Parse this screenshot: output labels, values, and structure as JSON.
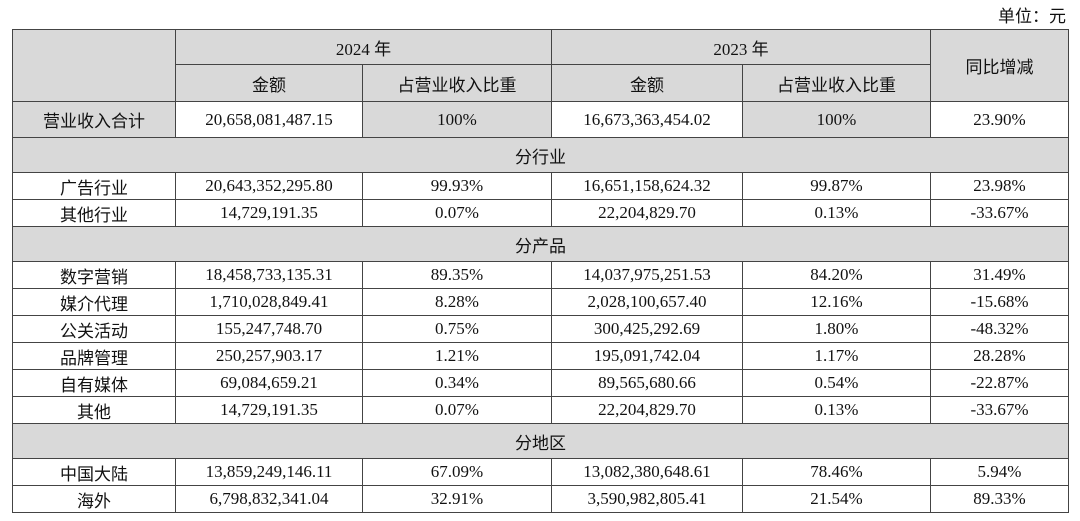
{
  "unit": "单位：元",
  "table": {
    "header_top": [
      "2024 年",
      "2023 年",
      "同比增减"
    ],
    "header_sub": [
      "金额",
      "占营业收入比重",
      "金额",
      "占营业收入比重"
    ],
    "rows": [
      [
        "营业收入合计",
        "20,658,081,487.15",
        "100%",
        "16,673,363,454.02",
        "100%",
        "23.90%"
      ],
      [
        "分行业"
      ],
      [
        "广告行业",
        "20,643,352,295.80",
        "99.93%",
        "16,651,158,624.32",
        "99.87%",
        "23.98%"
      ],
      [
        "其他行业",
        "14,729,191.35",
        "0.07%",
        "22,204,829.70",
        "0.13%",
        "-33.67%"
      ],
      [
        "分产品"
      ],
      [
        "数字营销",
        "18,458,733,135.31",
        "89.35%",
        "14,037,975,251.53",
        "84.20%",
        "31.49%"
      ],
      [
        "媒介代理",
        "1,710,028,849.41",
        "8.28%",
        "2,028,100,657.40",
        "12.16%",
        "-15.68%"
      ],
      [
        "公关活动",
        "155,247,748.70",
        "0.75%",
        "300,425,292.69",
        "1.80%",
        "-48.32%"
      ],
      [
        "品牌管理",
        "250,257,903.17",
        "1.21%",
        "195,091,742.04",
        "1.17%",
        "28.28%"
      ],
      [
        "自有媒体",
        "69,084,659.21",
        "0.34%",
        "89,565,680.66",
        "0.54%",
        "-22.87%"
      ],
      [
        "其他",
        "14,729,191.35",
        "0.07%",
        "22,204,829.70",
        "0.13%",
        "-33.67%"
      ],
      [
        "分地区"
      ],
      [
        "中国大陆",
        "13,859,249,146.11",
        "67.09%",
        "13,082,380,648.61",
        "78.46%",
        "5.94%"
      ],
      [
        "海外",
        "6,798,832,341.04",
        "32.91%",
        "3,590,982,805.41",
        "21.54%",
        "89.33%"
      ]
    ]
  }
}
